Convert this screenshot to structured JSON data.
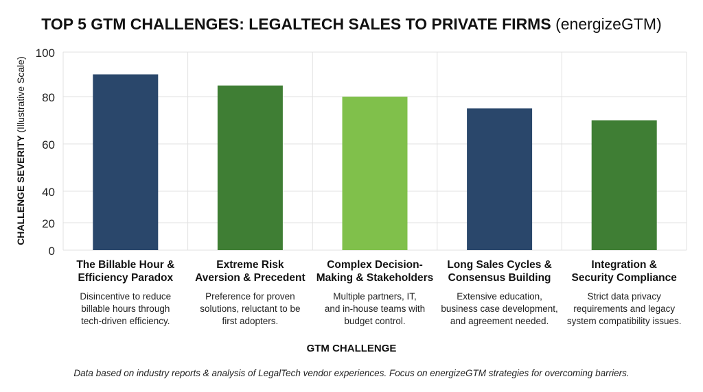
{
  "chart_data": {
    "type": "bar",
    "title": "TOP 5 GTM CHALLENGES: LEGALTECH SALES TO PRIVATE FIRMS",
    "title_suffix": "(energizeGTM)",
    "xlabel": "GTM CHALLENGE",
    "ylabel": "CHALLENGE SEVERITY",
    "ylabel_suffix": "(Illustrative Scale)",
    "ylim": [
      0,
      100
    ],
    "yticks": [
      0,
      20,
      40,
      60,
      80,
      100
    ],
    "grid": true,
    "categories": [
      "The Billable Hour & Efficiency Paradox",
      "Extreme Risk Aversion & Precedent",
      "Complex Decision-Making & Stakeholders",
      "Long Sales Cycles & Consensus Building",
      "Integration & Security Compliance"
    ],
    "category_lines": [
      [
        "The Billable Hour &",
        "Efficiency Paradox"
      ],
      [
        "Extreme Risk",
        "Aversion & Precedent"
      ],
      [
        "Complex Decision-",
        "Making & Stakeholders"
      ],
      [
        "Long Sales Cycles &",
        "Consensus Building"
      ],
      [
        "Integration &",
        "Security Compliance"
      ]
    ],
    "descriptions": [
      [
        "Disincentive to reduce",
        "billable hours through",
        "tech-driven efficiency."
      ],
      [
        "Preference for proven",
        "solutions, reluctant to be",
        "first adopters."
      ],
      [
        "Multiple partners, IT,",
        "and in-house teams with",
        "budget control."
      ],
      [
        "Extensive education,",
        "business case development,",
        "and agreement needed."
      ],
      [
        "Strict data privacy",
        "requirements and legacy",
        "system compatibility issues."
      ]
    ],
    "values": [
      90,
      85,
      80,
      75,
      70
    ],
    "colors": [
      "#2a476b",
      "#3f7e34",
      "#80c04b",
      "#2a476b",
      "#3f7e34"
    ],
    "footnote": "Data based on industry reports & analysis of LegalTech vendor experiences. Focus on energizeGTM strategies for overcoming barriers."
  }
}
